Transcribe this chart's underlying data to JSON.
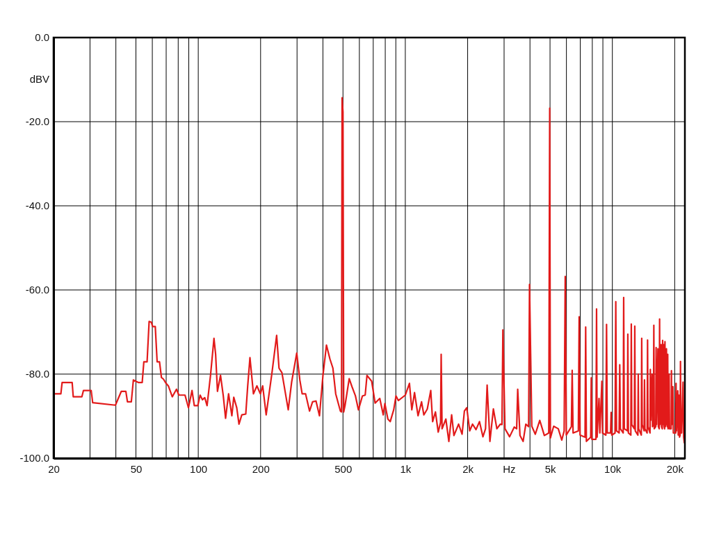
{
  "chart_data": {
    "type": "line",
    "xlabel": "Hz",
    "ylabel": "dBV",
    "log": "x",
    "grid": true,
    "xlim": [
      20,
      22400
    ],
    "ylim": [
      -100,
      0
    ],
    "xticks": [
      20,
      {
        "value": 30,
        "label": null
      },
      {
        "value": 40,
        "label": null
      },
      50,
      {
        "value": 60,
        "label": null
      },
      {
        "value": 70,
        "label": null
      },
      {
        "value": 80,
        "label": null
      },
      {
        "value": 90,
        "label": null
      },
      100,
      200,
      {
        "value": 300,
        "label": null
      },
      {
        "value": 400,
        "label": null
      },
      500,
      {
        "value": 600,
        "label": null
      },
      {
        "value": 700,
        "label": null
      },
      {
        "value": 800,
        "label": null
      },
      {
        "value": 900,
        "label": null
      },
      {
        "value": 1000,
        "label": "1k"
      },
      {
        "value": 2000,
        "label": "2k"
      },
      {
        "value": 3000,
        "label": null
      },
      {
        "value": 4000,
        "label": null
      },
      {
        "value": 5000,
        "label": "5k"
      },
      {
        "value": 6000,
        "label": null
      },
      {
        "value": 7000,
        "label": null
      },
      {
        "value": 8000,
        "label": null
      },
      {
        "value": 9000,
        "label": null
      },
      {
        "value": 10000,
        "label": "10k"
      },
      {
        "value": 20000,
        "label": "20k"
      }
    ],
    "yticks": [
      {
        "value": 0,
        "label": "0.0"
      },
      {
        "value": -20,
        "label": "-20.0"
      },
      {
        "value": -40,
        "label": "-40.0"
      },
      {
        "value": -60,
        "label": "-60.0"
      },
      {
        "value": -80,
        "label": "-80.0"
      },
      {
        "value": -100,
        "label": "-100.0"
      }
    ],
    "x": [
      20,
      21.7,
      22.0,
      24.6,
      24.9,
      27.4,
      27.9,
      30.4,
      30.9,
      39.8,
      42.5,
      44.7,
      45.5,
      47.5,
      48.6,
      51.3,
      53.6,
      54.6,
      56.6,
      57.9,
      59.4,
      60.2,
      62.0,
      63.3,
      65.0,
      66.4,
      67.9,
      69.9,
      71.7,
      74.9,
      78.5,
      80.6,
      86.3,
      89.7,
      93.3,
      95.7,
      99.5,
      102.1,
      104.8,
      107.5,
      110.3,
      114.6,
      119.1,
      121.3,
      123.8,
      128.1,
      132.1,
      135.5,
      140.1,
      145.3,
      148.4,
      153.4,
      157.3,
      162.3,
      169.6,
      173.2,
      177.7,
      184.7,
      192.0,
      199.5,
      204.7,
      212.8,
      227.0,
      239.1,
      245.5,
      253.6,
      272.0,
      282.5,
      299.0,
      309.4,
      317.5,
      329.9,
      344.8,
      356.5,
      370.4,
      385.0,
      400.2,
      416.0,
      432.4,
      447.0,
      461.2,
      485.8,
      492,
      495,
      500,
      504,
      511.4,
      535.8,
      552.6,
      574.4,
      593.8,
      620.6,
      640.0,
      653.0,
      687.8,
      714.9,
      752.8,
      782.6,
      796.7,
      823.7,
      845.5,
      878.9,
      901.7,
      925.1,
      1000,
      1047,
      1075,
      1108,
      1152,
      1198,
      1229,
      1277,
      1327,
      1355,
      1398,
      1442,
      1480,
      1490,
      1505,
      1570,
      1623,
      1674,
      1717,
      1809,
      1880,
      1929,
      1980,
      2047,
      2112,
      2195,
      2281,
      2371,
      2440,
      2484,
      2562,
      2663,
      2768,
      2877,
      2930,
      2960,
      3030,
      3189,
      3358,
      3450,
      3490,
      3580,
      3706,
      3820,
      3940,
      3980,
      4082,
      4244,
      4460,
      4694,
      4930,
      4982,
      5020,
      5206,
      5480,
      5696,
      5850,
      5920,
      5990,
      6340,
      6397,
      6460,
      6850,
      6911,
      6980,
      7380,
      7432,
      7490,
      7860,
      7908,
      7960,
      8330,
      8388,
      8440,
      8620,
      8700,
      8900,
      8960,
      9300,
      9374,
      9450,
      9800,
      9863,
      9930,
      10300,
      10388,
      10470,
      10780,
      10856,
      10930,
      11280,
      11340,
      11420,
      11820,
      11876,
      11950,
      12280,
      12344,
      12410,
      12770,
      12832,
      12900,
      13280,
      13338,
      13400,
      13800,
      13860,
      13930,
      14240,
      14298,
      14360,
      14720,
      14792,
      14860,
      15200,
      15256,
      15320,
      15550,
      15620,
      15780,
      15860,
      15930,
      16200,
      16270,
      16340,
      16600,
      16680,
      16840,
      16910,
      16980,
      17200,
      17280,
      17420,
      17490,
      17560,
      17700,
      17790,
      17880,
      17950,
      18020,
      18250,
      18330,
      18440,
      18510,
      18580,
      18800,
      18880,
      19220,
      19290,
      19360,
      19600,
      19700,
      20230,
      20310,
      20400,
      20700,
      20800,
      21000,
      21100,
      21250,
      21330,
      21420,
      21600,
      21950,
      22100,
      22250
    ],
    "series": [
      {
        "color": "#e21a1a",
        "values": [
          -84.7,
          -84.7,
          -82.0,
          -82.0,
          -85.4,
          -85.4,
          -83.9,
          -83.9,
          -86.8,
          -87.4,
          -84.1,
          -84.1,
          -86.6,
          -86.6,
          -81.4,
          -82.0,
          -82.0,
          -77.1,
          -77.1,
          -67.5,
          -67.7,
          -68.7,
          -68.7,
          -77.1,
          -77.1,
          -80.8,
          -81.2,
          -82.2,
          -82.8,
          -85.4,
          -83.6,
          -85.0,
          -85.0,
          -88.0,
          -83.9,
          -87.5,
          -87.5,
          -85.0,
          -86.1,
          -85.6,
          -87.5,
          -80.3,
          -71.5,
          -75.3,
          -84.1,
          -80.3,
          -85.2,
          -90.5,
          -84.7,
          -89.9,
          -85.5,
          -88.0,
          -91.9,
          -89.7,
          -89.5,
          -83.0,
          -76.1,
          -84.7,
          -82.8,
          -84.7,
          -82.8,
          -89.7,
          -79.7,
          -70.8,
          -78.6,
          -79.7,
          -88.5,
          -81.9,
          -75.0,
          -81.4,
          -84.7,
          -84.7,
          -88.8,
          -86.6,
          -86.4,
          -89.9,
          -80.3,
          -73.1,
          -76.4,
          -78.6,
          -84.7,
          -88.8,
          -89.0,
          -14.3,
          -17.7,
          -89.0,
          -87.5,
          -81.1,
          -83.0,
          -85.2,
          -88.5,
          -85.2,
          -85.0,
          -80.3,
          -81.7,
          -86.9,
          -85.8,
          -89.7,
          -87.0,
          -90.7,
          -91.3,
          -88.5,
          -85.2,
          -86.3,
          -85.0,
          -82.2,
          -88.5,
          -84.4,
          -89.9,
          -86.6,
          -89.7,
          -88.3,
          -83.9,
          -91.3,
          -89.0,
          -93.8,
          -91.5,
          -75.3,
          -93.0,
          -90.7,
          -96.0,
          -89.7,
          -94.6,
          -91.9,
          -94.3,
          -88.8,
          -88.0,
          -93.5,
          -91.9,
          -93.2,
          -91.3,
          -94.9,
          -93.0,
          -82.6,
          -96.0,
          -88.3,
          -93.0,
          -91.9,
          -92.0,
          -69.5,
          -93.0,
          -94.9,
          -92.6,
          -93.0,
          -83.6,
          -94.6,
          -96.0,
          -91.9,
          -92.5,
          -58.7,
          -92.4,
          -94.3,
          -91.0,
          -94.6,
          -94.0,
          -16.8,
          -95.2,
          -92.4,
          -93.0,
          -95.7,
          -93.5,
          -56.8,
          -94.5,
          -92.5,
          -79.1,
          -94.0,
          -93.5,
          -66.4,
          -94.5,
          -95.0,
          -68.8,
          -96.0,
          -95.0,
          -80.9,
          -95.5,
          -95.5,
          -64.5,
          -95.0,
          -85.8,
          -94.0,
          -81.7,
          -94.0,
          -94.5,
          -68.2,
          -94.0,
          -94.0,
          -89.1,
          -94.5,
          -94.0,
          -62.8,
          -93.5,
          -94.0,
          -77.8,
          -93.0,
          -94.0,
          -61.8,
          -93.0,
          -93.5,
          -70.5,
          -94.0,
          -94.5,
          -68.1,
          -92.0,
          -93.0,
          -68.6,
          -93.5,
          -94.5,
          -80.0,
          -93.0,
          -94.5,
          -71.5,
          -92.0,
          -93.5,
          -81.4,
          -93.0,
          -94.0,
          -71.9,
          -92.5,
          -94.0,
          -78.9,
          -91.0,
          -80.0,
          -92.5,
          -92.0,
          -68.4,
          -93.0,
          -92.5,
          -73.7,
          -92.0,
          -74.0,
          -92.5,
          -93.0,
          -66.9,
          -92.0,
          -73.0,
          -92.5,
          -93.0,
          -72.0,
          -92.0,
          -73.0,
          -92.5,
          -93.0,
          -72.3,
          -92.5,
          -74.0,
          -92.0,
          -92.5,
          -75.3,
          -93.0,
          -80.0,
          -93.0,
          -93.0,
          -79.2,
          -92.0,
          -83.0,
          -94.0,
          -94.0,
          -82.2,
          -93.5,
          -84.0,
          -94.5,
          -85.0,
          -95.0,
          -94.5,
          -77.0,
          -94.0,
          -94.0,
          -81.9,
          -95.0,
          -96.3
        ]
      }
    ]
  }
}
